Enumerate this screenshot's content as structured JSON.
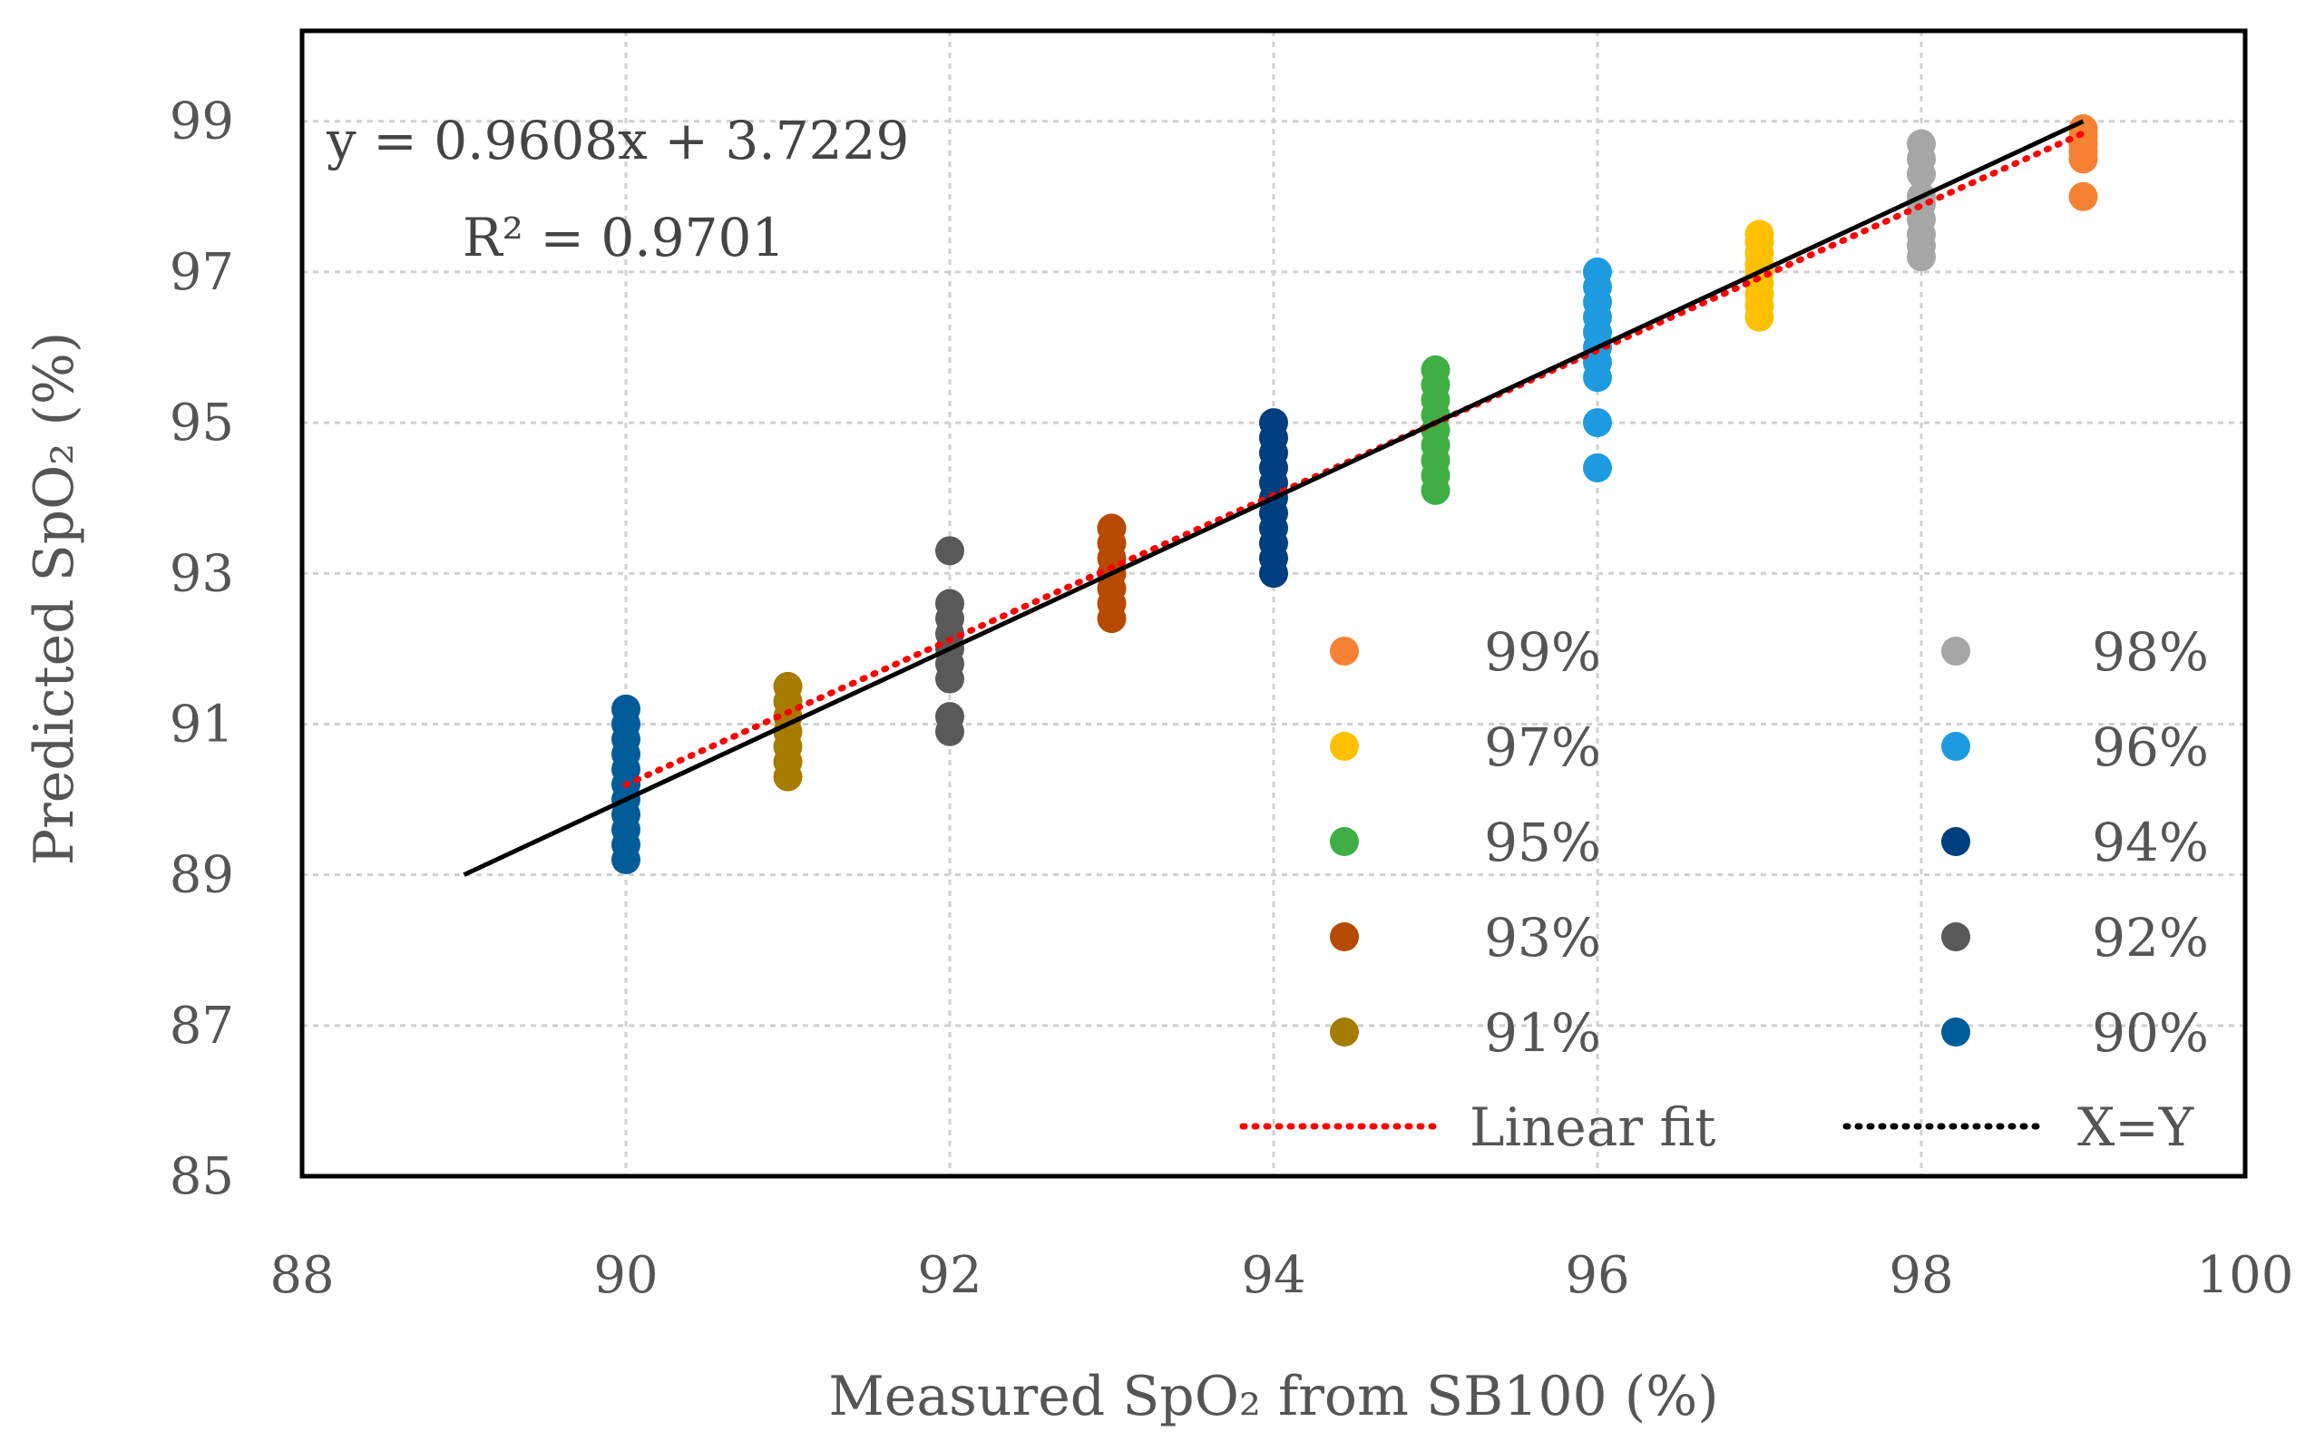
{
  "chart_data": {
    "type": "scatter",
    "xlabel": "Measured SpO₂ from SB100 (%)",
    "ylabel": "Predicted SpO₂ (%)",
    "xlim": [
      88,
      100
    ],
    "ylim": [
      85,
      100.2
    ],
    "x_ticks": [
      "88",
      "90",
      "92",
      "94",
      "96",
      "98",
      "100"
    ],
    "y_ticks": [
      "85",
      "87",
      "89",
      "91",
      "93",
      "95",
      "97",
      "99"
    ],
    "grid": true,
    "legend_position": "bottom-right",
    "annotations": {
      "equation": "y = 0.9608x + 3.7229",
      "r_squared": "R² = 0.9701"
    },
    "series": [
      {
        "name": "99%",
        "color": "#F58233",
        "x": 99,
        "values": [
          98.0,
          98.5,
          98.6,
          98.7,
          98.8,
          98.9
        ]
      },
      {
        "name": "98%",
        "color": "#A6A6A6",
        "x": 98,
        "values": [
          97.2,
          97.35,
          97.5,
          97.7,
          97.9,
          98.0,
          98.3,
          98.5,
          98.7
        ]
      },
      {
        "name": "97%",
        "color": "#FFC000",
        "x": 97,
        "values": [
          96.4,
          96.55,
          96.7,
          96.85,
          97.0,
          97.1,
          97.25,
          97.4,
          97.5
        ]
      },
      {
        "name": "96%",
        "color": "#1E9BE0",
        "x": 96,
        "values": [
          94.4,
          95.0,
          95.6,
          95.8,
          96.0,
          96.2,
          96.4,
          96.6,
          96.8,
          97.0
        ]
      },
      {
        "name": "95%",
        "color": "#3FAE45",
        "x": 95,
        "values": [
          94.1,
          94.3,
          94.5,
          94.7,
          94.9,
          95.1,
          95.3,
          95.5,
          95.7
        ]
      },
      {
        "name": "94%",
        "color": "#003F7F",
        "x": 94,
        "values": [
          93.0,
          93.2,
          93.4,
          93.6,
          93.8,
          94.0,
          94.2,
          94.4,
          94.6,
          94.8,
          95.0
        ]
      },
      {
        "name": "93%",
        "color": "#B54A00",
        "x": 93,
        "values": [
          92.4,
          92.6,
          92.8,
          93.0,
          93.2,
          93.4,
          93.6
        ]
      },
      {
        "name": "92%",
        "color": "#595959",
        "x": 92,
        "values": [
          90.9,
          91.1,
          91.6,
          91.8,
          92.0,
          92.2,
          92.4,
          92.6,
          93.3
        ]
      },
      {
        "name": "91%",
        "color": "#A67C00",
        "x": 91,
        "values": [
          90.3,
          90.5,
          90.7,
          90.9,
          91.1,
          91.3,
          91.5
        ]
      },
      {
        "name": "90%",
        "color": "#005C99",
        "x": 90,
        "values": [
          89.2,
          89.4,
          89.6,
          89.8,
          90.0,
          90.2,
          90.4,
          90.6,
          90.8,
          91.0,
          91.2
        ]
      }
    ],
    "lines": [
      {
        "name": "Linear fit",
        "color": "#FF0000",
        "style": "dotted",
        "slope": 0.9608,
        "intercept": 3.7229,
        "x_range": [
          90,
          99
        ]
      },
      {
        "name": "X=Y",
        "color": "#000000",
        "style": "solid-with-dots",
        "slope": 1,
        "intercept": 0,
        "x_range": [
          89,
          99
        ]
      }
    ],
    "legend_order": [
      "99%",
      "98%",
      "97%",
      "96%",
      "95%",
      "94%",
      "93%",
      "92%",
      "91%",
      "90%"
    ]
  }
}
